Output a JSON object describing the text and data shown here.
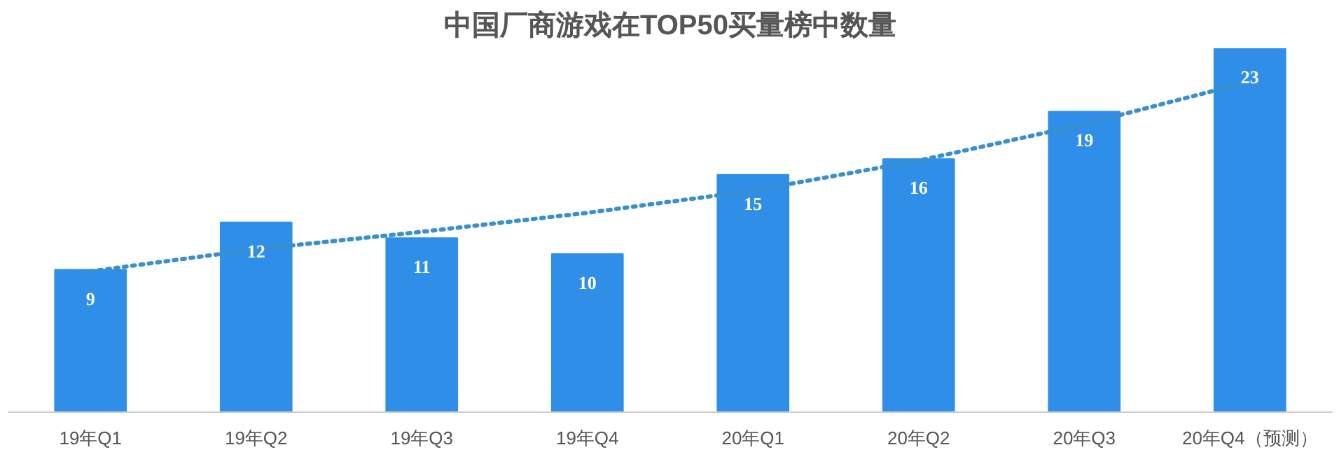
{
  "chart_data": {
    "type": "bar",
    "title": "中国厂商游戏在TOP50买量榜中数量",
    "categories": [
      "19年Q1",
      "19年Q2",
      "19年Q3",
      "19年Q4",
      "20年Q1",
      "20年Q2",
      "20年Q3",
      "20年Q4（预测）"
    ],
    "series": [
      {
        "color": "#2f8fe8",
        "values": [
          9,
          12,
          11,
          10,
          15,
          16,
          19,
          23
        ],
        "value_labels": [
          "9",
          "12",
          "11",
          "10",
          "15",
          "16",
          "19",
          "23"
        ]
      },
      {
        "type": "line",
        "line_style": "dotted",
        "color": "#3a8fcc",
        "values": [
          8.9,
          10.3,
          11.4,
          12.6,
          14.0,
          15.9,
          18.2,
          20.9
        ]
      }
    ]
  }
}
